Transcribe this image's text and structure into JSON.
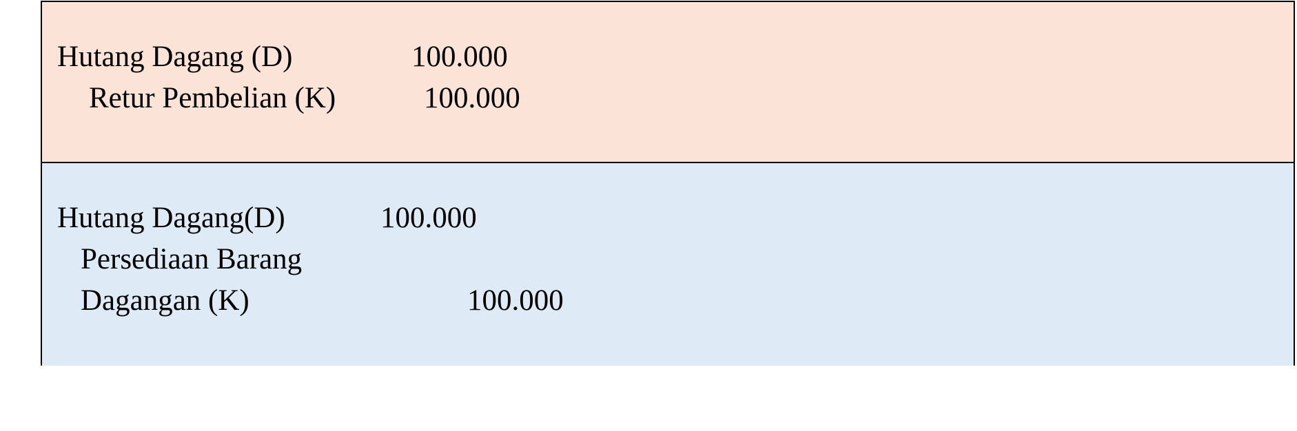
{
  "colors": {
    "top_panel": "#fce3d7",
    "bottom_panel": "#deeaf6",
    "border": "#000000"
  },
  "entries": [
    {
      "debit_account": "Hutang Dagang (D)",
      "debit_amount": "100.000",
      "credit_account": "Retur Pembelian (K)",
      "credit_amount": "100.000"
    },
    {
      "debit_account": "Hutang Dagang(D)",
      "debit_amount": "100.000",
      "credit_account_line1": "Persediaan Barang",
      "credit_account_line2": "Dagangan (K)",
      "credit_amount": "100.000"
    }
  ]
}
